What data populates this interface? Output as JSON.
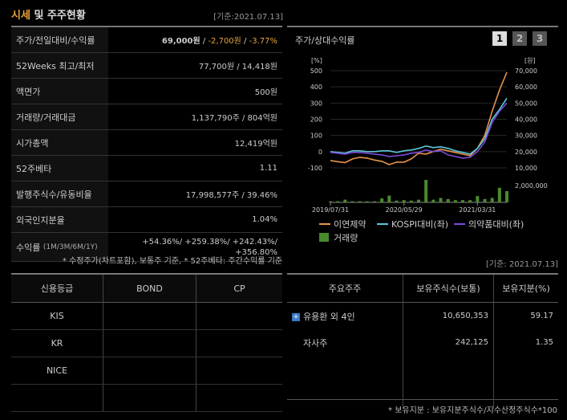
{
  "header": {
    "title_part1": "시세",
    "title_part2": " 및 주주현황",
    "basis": "[기준:2021.07.13]"
  },
  "market": {
    "rows": [
      {
        "label": "주가/전일대비/수익률",
        "price": "69,000원",
        "sep1": " / ",
        "change": "-2,700원",
        "sep2": " / ",
        "rate": "-3.77%"
      },
      {
        "label": "52Weeks 최고/최저",
        "value": "77,700원 / 14,418원"
      },
      {
        "label": "액면가",
        "value": "500원"
      },
      {
        "label": "거래량/거래대금",
        "value": "1,137,790주 / 804억원"
      },
      {
        "label": "시가총액",
        "value": "12,419억원"
      },
      {
        "label": "52주베타",
        "value": "1.11"
      },
      {
        "label": "발행주식수/유동비율",
        "value": "17,998,577주 / 39.46%"
      },
      {
        "label": "외국인지분율",
        "value": "1.04%"
      }
    ],
    "returns": {
      "label_main": "수익률",
      "label_sub": "(1M/3M/6M/1Y)",
      "line1": "+54.36%/ +259.38%/ +242.43%/",
      "line2": "+356.80%"
    },
    "note": "* 수정주가(차트포함), 보통주 기준, * 52주베타: 주간수익률 기준"
  },
  "chart_panel": {
    "title": "주가/상대수익률",
    "period_buttons": [
      "1",
      "2",
      "3"
    ],
    "active_period": "1",
    "basis": "[기준: 2021.07.13]"
  },
  "chart_data": {
    "type": "line",
    "left_axis_unit": "[%]",
    "right_axis_unit": "[원]",
    "volume_axis_label": "2,000,000",
    "left_ticks": [
      "500",
      "400",
      "300",
      "200",
      "100",
      "0",
      "-100"
    ],
    "right_ticks": [
      "70,000",
      "60,000",
      "50,000",
      "40,000",
      "30,000",
      "20,000",
      "10,000"
    ],
    "x_ticks": [
      "2019/07/31",
      "2020/05/29",
      "2021/03/31"
    ],
    "ylim_left": [
      -100,
      500
    ],
    "x": [
      "2019-07",
      "2019-08",
      "2019-09",
      "2019-10",
      "2019-11",
      "2019-12",
      "2020-01",
      "2020-02",
      "2020-03",
      "2020-04",
      "2020-05",
      "2020-06",
      "2020-07",
      "2020-08",
      "2020-09",
      "2020-10",
      "2020-11",
      "2020-12",
      "2021-01",
      "2021-02",
      "2021-03",
      "2021-04",
      "2021-05",
      "2021-06",
      "2021-07"
    ],
    "series": [
      {
        "name": "이연제약",
        "color": "#e8944a",
        "values": [
          -55,
          -62,
          -68,
          -45,
          -35,
          -40,
          -52,
          -60,
          -80,
          -65,
          -65,
          -45,
          -10,
          -15,
          0,
          15,
          5,
          -5,
          -15,
          -25,
          20,
          100,
          250,
          380,
          490
        ]
      },
      {
        "name": "KOSPI대비(좌)",
        "color": "#5bc8dc",
        "values": [
          0,
          -5,
          -10,
          5,
          5,
          0,
          0,
          5,
          5,
          -5,
          5,
          10,
          20,
          35,
          25,
          30,
          20,
          5,
          -5,
          -15,
          20,
          80,
          200,
          260,
          330
        ]
      },
      {
        "name": "의약품대비(좌)",
        "color": "#7a4ad6",
        "values": [
          -5,
          -10,
          -15,
          -5,
          -5,
          -10,
          -15,
          -20,
          -30,
          -25,
          -20,
          -10,
          -5,
          10,
          0,
          5,
          -20,
          -30,
          -40,
          -35,
          0,
          60,
          180,
          250,
          300
        ]
      }
    ],
    "volume": {
      "name": "거래량",
      "color": "#4a8a2e",
      "values": [
        0.05,
        0.05,
        0.12,
        0.05,
        0.05,
        0.05,
        0.05,
        0.18,
        0.3,
        0.08,
        0.1,
        0.08,
        0.12,
        1.0,
        0.12,
        0.2,
        0.15,
        0.1,
        0.1,
        0.1,
        0.28,
        0.15,
        0.2,
        0.65,
        0.5
      ]
    }
  },
  "credit": {
    "headers": [
      "신용등급",
      "BOND",
      "CP"
    ],
    "rows": [
      [
        "KIS",
        "",
        ""
      ],
      [
        "KR",
        "",
        ""
      ],
      [
        "NICE",
        "",
        ""
      ],
      [
        "",
        "",
        ""
      ]
    ]
  },
  "holders": {
    "headers": [
      "주요주주",
      "보유주식수(보통)",
      "보유지분(%)"
    ],
    "rows": [
      {
        "name": "유용환 외 4인",
        "shares": "10,650,353",
        "pct": "59.17",
        "expand": true
      },
      {
        "name": "자사주",
        "shares": "242,125",
        "pct": "1.35",
        "expand": false
      }
    ],
    "note": "* 보유지분 : 보유지분주식수/지수산정주식수*100"
  }
}
